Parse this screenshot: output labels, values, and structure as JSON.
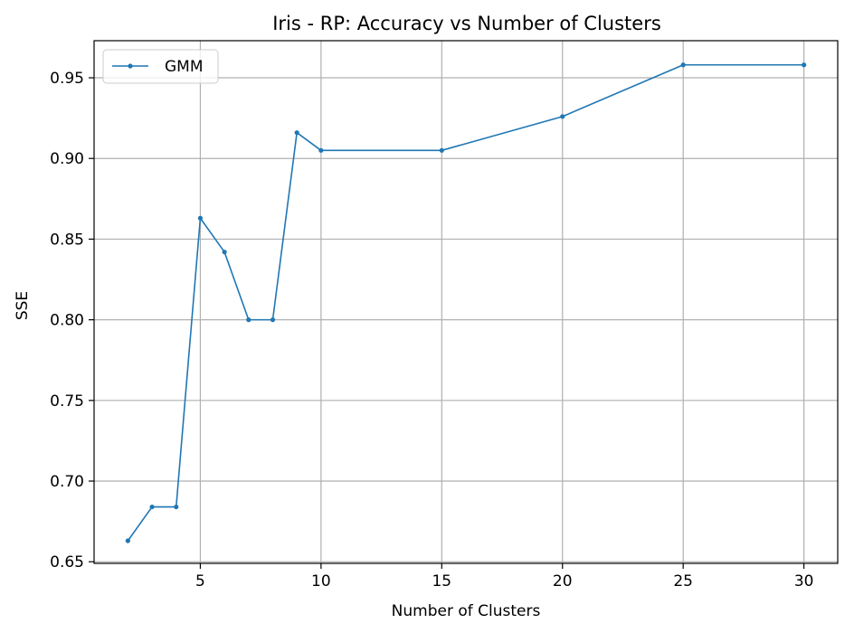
{
  "chart_data": {
    "type": "line",
    "title": "Iris - RP: Accuracy vs Number of Clusters",
    "xlabel": "Number of Clusters",
    "ylabel": "SSE",
    "xlim": [
      0.6,
      31.4
    ],
    "ylim": [
      0.649,
      0.973
    ],
    "xticks": [
      5,
      10,
      15,
      20,
      25,
      30
    ],
    "yticks": [
      0.65,
      0.7,
      0.75,
      0.8,
      0.85,
      0.9,
      0.95
    ],
    "xtick_labels": [
      "5",
      "10",
      "15",
      "20",
      "25",
      "30"
    ],
    "ytick_labels": [
      "0.65",
      "0.70",
      "0.75",
      "0.80",
      "0.85",
      "0.90",
      "0.95"
    ],
    "grid": true,
    "legend_position": "top-left",
    "series": [
      {
        "name": "GMM",
        "color": "#1f77b4",
        "marker": "dot",
        "x": [
          2,
          3,
          4,
          5,
          6,
          7,
          8,
          9,
          10,
          15,
          20,
          25,
          30
        ],
        "y": [
          0.663,
          0.684,
          0.684,
          0.863,
          0.842,
          0.8,
          0.8,
          0.916,
          0.905,
          0.905,
          0.926,
          0.958,
          0.958
        ]
      }
    ]
  }
}
